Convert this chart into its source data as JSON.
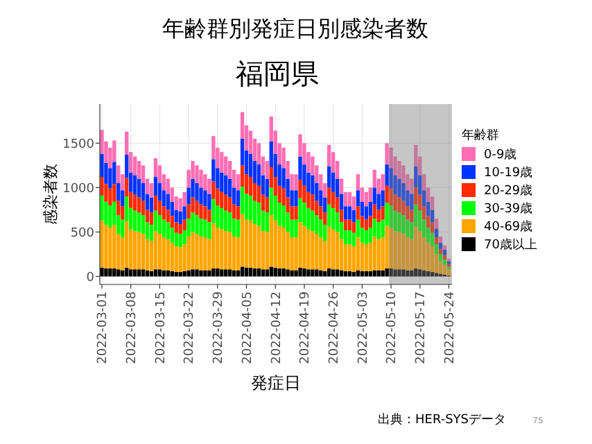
{
  "chart_data": {
    "type": "bar",
    "stacked": true,
    "title": "年齢群別発症日別感染者数",
    "subtitle": "福岡県",
    "xlabel": "発症日",
    "ylabel": "感染者数",
    "legend_title": "年齢群",
    "legend": "right",
    "grid": true,
    "annotations": [
      "出典：HER-SYSデータ",
      "75"
    ],
    "x": [
      "2022-03-01",
      "2022-03-02",
      "2022-03-03",
      "2022-03-04",
      "2022-03-05",
      "2022-03-06",
      "2022-03-07",
      "2022-03-08",
      "2022-03-09",
      "2022-03-10",
      "2022-03-11",
      "2022-03-12",
      "2022-03-13",
      "2022-03-14",
      "2022-03-15",
      "2022-03-16",
      "2022-03-17",
      "2022-03-18",
      "2022-03-19",
      "2022-03-20",
      "2022-03-21",
      "2022-03-22",
      "2022-03-23",
      "2022-03-24",
      "2022-03-25",
      "2022-03-26",
      "2022-03-27",
      "2022-03-28",
      "2022-03-29",
      "2022-03-30",
      "2022-03-31",
      "2022-04-01",
      "2022-04-02",
      "2022-04-03",
      "2022-04-04",
      "2022-04-05",
      "2022-04-06",
      "2022-04-07",
      "2022-04-08",
      "2022-04-09",
      "2022-04-10",
      "2022-04-11",
      "2022-04-12",
      "2022-04-13",
      "2022-04-14",
      "2022-04-15",
      "2022-04-16",
      "2022-04-17",
      "2022-04-18",
      "2022-04-19",
      "2022-04-20",
      "2022-04-21",
      "2022-04-22",
      "2022-04-23",
      "2022-04-24",
      "2022-04-25",
      "2022-04-26",
      "2022-04-27",
      "2022-04-28",
      "2022-04-29",
      "2022-04-30",
      "2022-05-01",
      "2022-05-02",
      "2022-05-03",
      "2022-05-04",
      "2022-05-05",
      "2022-05-06",
      "2022-05-07",
      "2022-05-08",
      "2022-05-09",
      "2022-05-10",
      "2022-05-11",
      "2022-05-12",
      "2022-05-13",
      "2022-05-14",
      "2022-05-15",
      "2022-05-16",
      "2022-05-17",
      "2022-05-18",
      "2022-05-19",
      "2022-05-20",
      "2022-05-21",
      "2022-05-22",
      "2022-05-23",
      "2022-05-24"
    ],
    "xlim": [
      "2022-02-28T12:00",
      "2022-05-24T18:00"
    ],
    "xticks": [
      "2022-03-01",
      "2022-03-08",
      "2022-03-15",
      "2022-03-22",
      "2022-03-29",
      "2022-04-05",
      "2022-04-12",
      "2022-04-19",
      "2022-04-26",
      "2022-05-03",
      "2022-05-10",
      "2022-05-17",
      "2022-05-24"
    ],
    "ylim": [
      -90,
      1940
    ],
    "yticks": [
      0,
      500,
      1000,
      1500
    ],
    "bands": [
      {
        "axis": "x",
        "from": "2022-05-09T12:00",
        "to": "2022-05-24T18:00",
        "color": "#808080"
      }
    ],
    "series": [
      {
        "name": "70歳以上",
        "color": "#000000",
        "values": [
          100,
          90,
          90,
          90,
          80,
          70,
          100,
          80,
          80,
          80,
          80,
          70,
          60,
          80,
          80,
          70,
          70,
          60,
          50,
          50,
          60,
          70,
          80,
          80,
          70,
          70,
          70,
          90,
          90,
          80,
          80,
          80,
          70,
          70,
          110,
          100,
          100,
          90,
          90,
          80,
          80,
          110,
          100,
          90,
          90,
          80,
          70,
          70,
          100,
          90,
          80,
          80,
          80,
          70,
          60,
          90,
          80,
          80,
          70,
          60,
          60,
          50,
          70,
          60,
          60,
          60,
          70,
          70,
          70,
          90,
          90,
          80,
          80,
          80,
          70,
          70,
          90,
          80,
          70,
          60,
          50,
          40,
          30,
          20,
          10
        ]
      },
      {
        "name": "40-69歳",
        "color": "#ffa500",
        "values": [
          530,
          490,
          460,
          490,
          400,
          370,
          520,
          450,
          430,
          420,
          400,
          350,
          340,
          430,
          400,
          370,
          350,
          320,
          290,
          280,
          300,
          380,
          420,
          400,
          380,
          370,
          350,
          510,
          460,
          450,
          430,
          420,
          380,
          370,
          590,
          540,
          530,
          500,
          480,
          430,
          420,
          580,
          530,
          480,
          460,
          420,
          370,
          370,
          510,
          480,
          450,
          430,
          400,
          370,
          340,
          470,
          450,
          420,
          350,
          300,
          300,
          290,
          370,
          320,
          300,
          320,
          380,
          350,
          370,
          480,
          460,
          430,
          420,
          400,
          370,
          350,
          470,
          430,
          370,
          320,
          290,
          210,
          140,
          110,
          70
        ]
      },
      {
        "name": "30-39歳",
        "color": "#00ff00",
        "values": [
          280,
          260,
          250,
          260,
          210,
          200,
          280,
          240,
          230,
          220,
          210,
          190,
          180,
          230,
          210,
          200,
          190,
          170,
          150,
          150,
          160,
          200,
          220,
          210,
          200,
          200,
          190,
          270,
          250,
          240,
          230,
          220,
          200,
          200,
          310,
          290,
          280,
          260,
          260,
          230,
          220,
          310,
          280,
          260,
          250,
          220,
          200,
          200,
          270,
          260,
          240,
          230,
          210,
          200,
          180,
          250,
          240,
          220,
          190,
          160,
          160,
          150,
          200,
          170,
          160,
          170,
          200,
          190,
          200,
          260,
          250,
          230,
          220,
          210,
          200,
          190,
          250,
          230,
          200,
          170,
          150,
          110,
          80,
          60,
          30
        ]
      },
      {
        "name": "20-29歳",
        "color": "#ff2a00",
        "values": [
          210,
          200,
          190,
          200,
          160,
          150,
          210,
          180,
          180,
          170,
          160,
          140,
          140,
          170,
          160,
          150,
          140,
          130,
          120,
          110,
          120,
          160,
          170,
          160,
          160,
          150,
          140,
          200,
          190,
          180,
          180,
          170,
          160,
          150,
          240,
          220,
          210,
          200,
          190,
          180,
          170,
          230,
          210,
          190,
          190,
          170,
          150,
          150,
          210,
          190,
          180,
          180,
          160,
          150,
          140,
          190,
          180,
          170,
          140,
          120,
          120,
          120,
          150,
          130,
          120,
          130,
          160,
          140,
          150,
          190,
          190,
          180,
          170,
          160,
          150,
          140,
          190,
          180,
          150,
          130,
          120,
          80,
          60,
          50,
          30
        ]
      },
      {
        "name": "10-19歳",
        "color": "#0033ff",
        "values": [
          260,
          240,
          230,
          250,
          200,
          180,
          260,
          220,
          220,
          210,
          200,
          180,
          170,
          210,
          200,
          180,
          180,
          160,
          140,
          140,
          150,
          190,
          210,
          200,
          190,
          180,
          180,
          250,
          230,
          220,
          220,
          210,
          190,
          180,
          300,
          270,
          260,
          250,
          240,
          220,
          210,
          290,
          260,
          240,
          230,
          210,
          180,
          180,
          260,
          240,
          220,
          220,
          200,
          180,
          170,
          240,
          220,
          210,
          180,
          150,
          150,
          140,
          180,
          160,
          150,
          160,
          190,
          180,
          180,
          240,
          230,
          220,
          210,
          200,
          180,
          180,
          240,
          220,
          180,
          160,
          140,
          100,
          70,
          60,
          30
        ]
      },
      {
        "name": "0-9歳",
        "color": "#ff6eb4",
        "values": [
          270,
          240,
          230,
          240,
          200,
          180,
          260,
          230,
          210,
          200,
          200,
          170,
          160,
          210,
          200,
          180,
          170,
          160,
          150,
          150,
          160,
          200,
          200,
          200,
          200,
          180,
          170,
          260,
          230,
          230,
          210,
          200,
          200,
          180,
          300,
          280,
          260,
          250,
          240,
          210,
          200,
          280,
          260,
          240,
          230,
          200,
          180,
          180,
          250,
          240,
          230,
          210,
          200,
          180,
          160,
          240,
          230,
          200,
          170,
          160,
          160,
          150,
          180,
          160,
          160,
          160,
          200,
          170,
          180,
          240,
          230,
          210,
          200,
          200,
          180,
          170,
          240,
          210,
          180,
          160,
          150,
          110,
          70,
          50,
          30
        ]
      }
    ]
  }
}
